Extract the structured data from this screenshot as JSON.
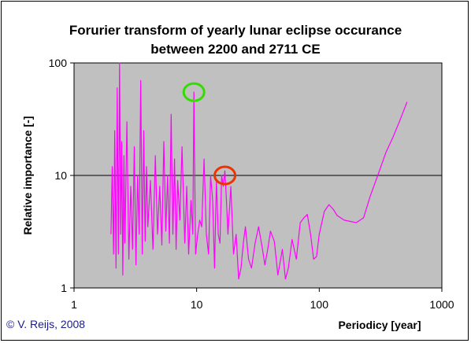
{
  "chart_data": {
    "type": "line",
    "title": "Forurier transform of yearly lunar eclipse occurance",
    "subtitle": "between 2200 and 2711 CE",
    "xlabel": "Periodicy [year]",
    "ylabel": "Relative importance [-]",
    "x_scale": "log",
    "y_scale": "log",
    "xlim": [
      1,
      1000
    ],
    "ylim": [
      1,
      100
    ],
    "x_ticks": [
      "1",
      "10",
      "100",
      "1000"
    ],
    "y_ticks": [
      "1",
      "10",
      "100"
    ],
    "gridlines_y": [
      10
    ],
    "plot_background": "#c0c0c0",
    "series_color": "#ff00ff",
    "credit": "© V. Reijs, 2008",
    "annotations": [
      {
        "shape": "circle",
        "color": "#33dd00",
        "x": 9.5,
        "y": 55
      },
      {
        "shape": "circle",
        "color": "#ee3300",
        "x": 17,
        "y": 10
      }
    ],
    "series": [
      {
        "x": [
          2.0,
          2.05,
          2.1,
          2.15,
          2.2,
          2.25,
          2.3,
          2.35,
          2.4,
          2.45,
          2.5,
          2.55,
          2.6,
          2.7,
          2.8,
          2.9,
          3.0,
          3.1,
          3.2,
          3.3,
          3.4,
          3.5,
          3.6,
          3.7,
          3.8,
          3.9,
          4.0,
          4.2,
          4.4,
          4.6,
          4.8,
          5.0,
          5.2,
          5.4,
          5.6,
          5.8,
          6.0,
          6.2,
          6.4,
          6.6,
          6.8,
          7.0,
          7.3,
          7.6,
          8.0,
          8.3,
          8.6,
          9.0,
          9.3,
          9.5,
          9.8,
          10.2,
          10.6,
          11.0,
          11.5,
          12.0,
          12.5,
          13.0,
          13.5,
          14.0,
          14.5,
          15.0,
          15.5,
          16.0,
          16.5,
          17.0,
          17.5,
          18.0,
          19.0,
          20.0,
          21.0,
          22.0,
          23.0,
          24.0,
          25.0,
          26.5,
          28.0,
          30.0,
          32.0,
          34.0,
          36.0,
          38.0,
          40.0,
          43.0,
          46.0,
          50.0,
          53.0,
          56.0,
          60.0,
          65.0,
          70.0,
          75.0,
          80.0,
          85.0,
          90.0,
          95.0,
          100.0,
          110.0,
          120.0,
          130.0,
          140.0,
          160.0,
          180.0,
          200.0,
          230.0,
          260.0,
          300.0,
          350.0,
          400.0,
          450.0,
          520.0
        ],
        "y": [
          3,
          12,
          2,
          25,
          1.5,
          60,
          2,
          100,
          3,
          20,
          1.3,
          15,
          2.5,
          30,
          1.8,
          8,
          2.2,
          18,
          1.6,
          10,
          3,
          70,
          2,
          25,
          2.6,
          12,
          3.5,
          9,
          2.2,
          15,
          3,
          8,
          2.4,
          20,
          3.2,
          10,
          2.5,
          35,
          3,
          14,
          2.2,
          9,
          4,
          18,
          2.5,
          8,
          2,
          6,
          3,
          55,
          2,
          3,
          4,
          3.5,
          14,
          3,
          2,
          10,
          6,
          1.5,
          9,
          3,
          2.5,
          10,
          8,
          11,
          6,
          3,
          8,
          2,
          3,
          1.2,
          1.5,
          2.5,
          3.5,
          1.8,
          1.5,
          2.5,
          3.5,
          2.4,
          1.6,
          2.2,
          3.2,
          2.6,
          1.3,
          2.2,
          1.2,
          1.5,
          2.7,
          1.8,
          3.8,
          4.2,
          4.5,
          3.0,
          1.8,
          1.9,
          3.0,
          4.8,
          5.5,
          5.0,
          4.4,
          4.0,
          3.9,
          3.8,
          4.2,
          6.5,
          10.0,
          16.0,
          22.0,
          30.0,
          45.0
        ]
      }
    ]
  }
}
